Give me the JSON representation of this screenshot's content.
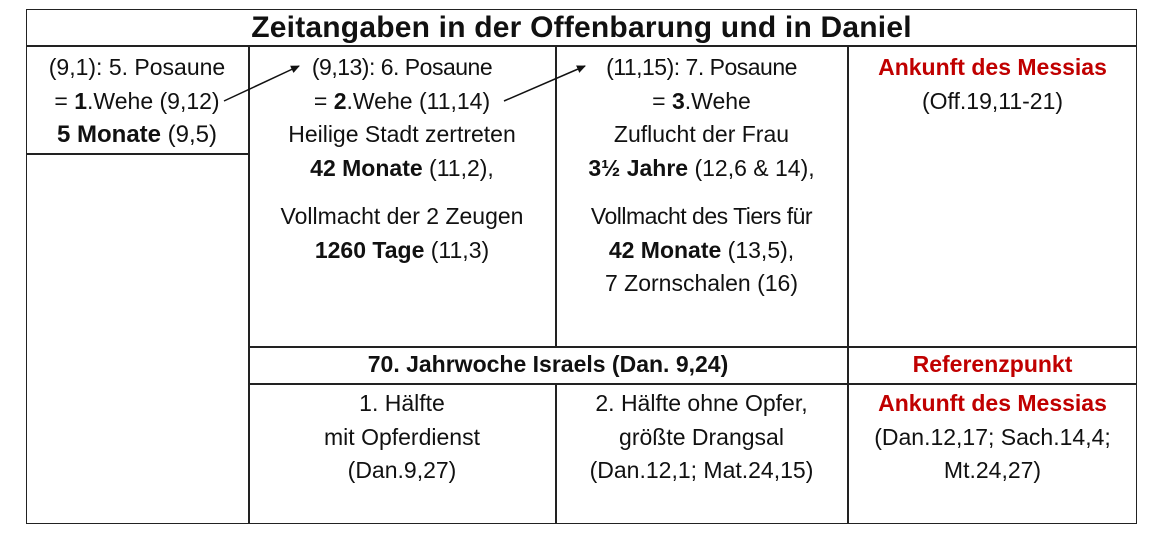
{
  "title": "Zeitangaben in der Offenbarung und in Daniel",
  "col1": {
    "line1": "(9,1): 5. Posaune",
    "line2_pre": "= ",
    "line2_bold": "1",
    "line2_post": ".Wehe (9,12)",
    "line3_bold": "5 Monate",
    "line3_post": " (9,5)"
  },
  "col2": {
    "line1": "(9,13): 6. Posaune",
    "line2_pre": "= ",
    "line2_bold": "2",
    "line2_post": ".Wehe (11,14)",
    "line3": "Heilige Stadt zertreten",
    "line4_bold": "42 Monate",
    "line4_post": " (11,2),",
    "line5": "Vollmacht der 2 Zeugen",
    "line6_bold": "1260 Tage",
    "line6_post": " (11,3)"
  },
  "col3": {
    "line1": "(11,15): 7. Posaune",
    "line2_pre": "= ",
    "line2_bold": "3",
    "line2_post": ".Wehe",
    "line3": "Zuflucht der Frau",
    "line4_bold": "3½ Jahre",
    "line4_post": " (12,6 & 14),",
    "line5": "Vollmacht des Tiers für",
    "line6_bold": "42 Monate",
    "line6_post": " (13,5),",
    "line7": "7 Zornschalen (16)"
  },
  "col4": {
    "line1": "Ankunft des Messias",
    "line2": "(Off.19,11-21)"
  },
  "row2": {
    "week_header": "70. Jahrwoche Israels (Dan. 9,24)",
    "ref_header": "Referenzpunkt"
  },
  "row3": {
    "half1": [
      "1.  Hälfte",
      "mit Opferdienst",
      "(Dan.9,27)"
    ],
    "half2": [
      "2.  Hälfte ohne Opfer,",
      "größte Drangsal",
      "(Dan.12,1; Mat.24,15)"
    ],
    "ref": {
      "line1": "Ankunft des Messias",
      "line2": "(Dan.12,17; Sach.14,4;",
      "line3": "Mt.24,27)"
    }
  },
  "colors": {
    "accent_red": "#c00000",
    "border": "#222222"
  }
}
